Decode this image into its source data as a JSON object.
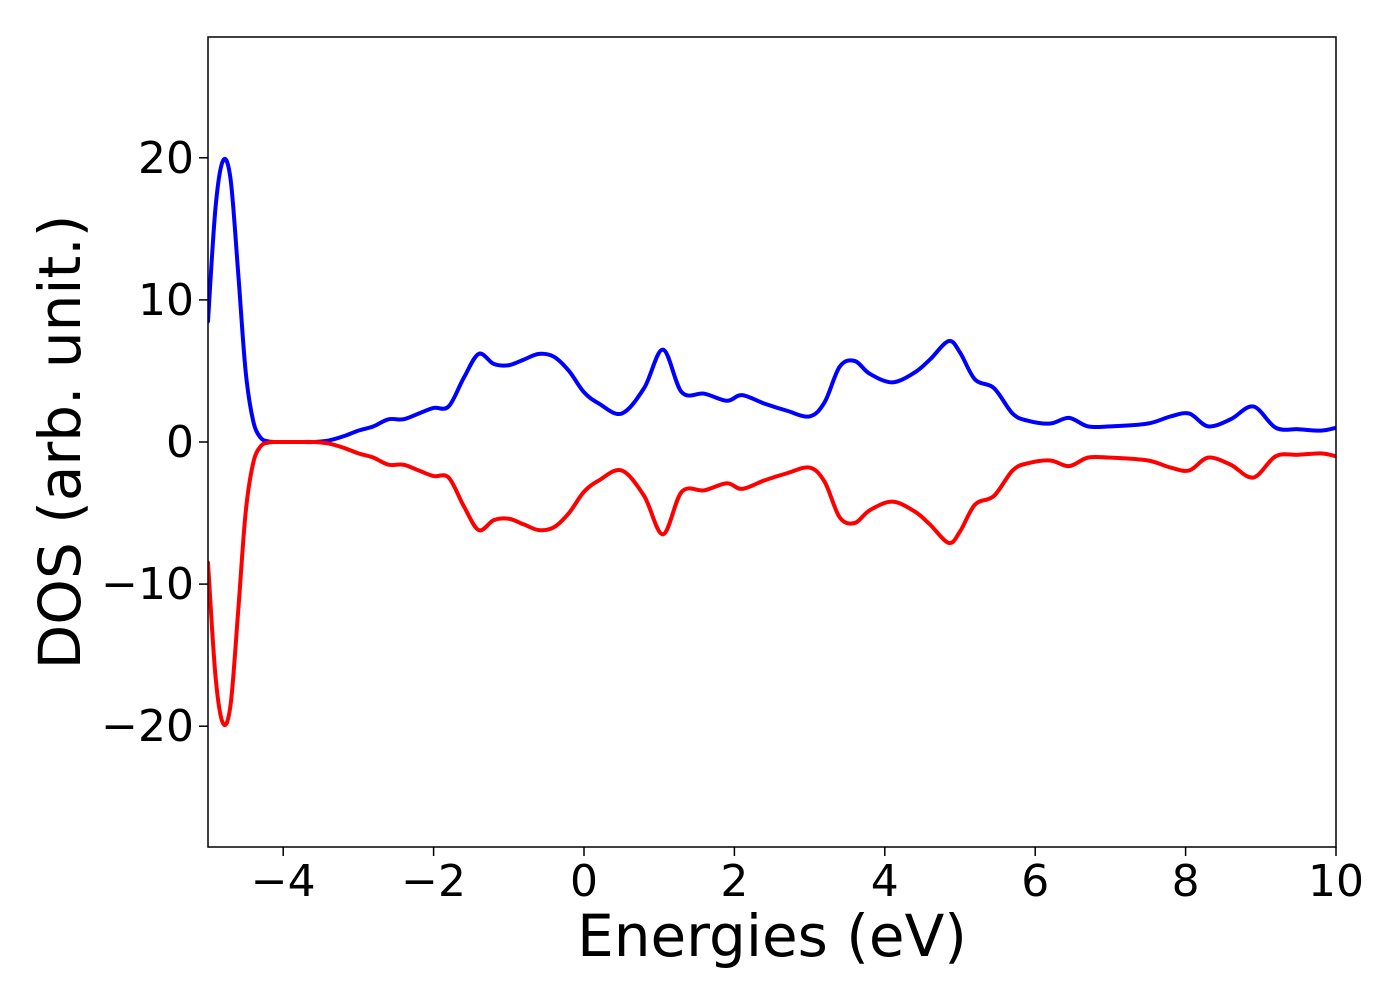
{
  "chart_data": {
    "type": "line",
    "title": "",
    "xlabel": "Energies (eV)",
    "ylabel": "DOS (arb. unit.)",
    "xlim": [
      -5,
      10
    ],
    "ylim": [
      -28.5,
      28.5
    ],
    "x_ticks": [
      {
        "value": -4,
        "label": "−4"
      },
      {
        "value": -2,
        "label": "−2"
      },
      {
        "value": 0,
        "label": "0"
      },
      {
        "value": 2,
        "label": "2"
      },
      {
        "value": 4,
        "label": "4"
      },
      {
        "value": 6,
        "label": "6"
      },
      {
        "value": 8,
        "label": "8"
      },
      {
        "value": 10,
        "label": "10"
      }
    ],
    "y_ticks": [
      {
        "value": 20,
        "label": "20"
      },
      {
        "value": 10,
        "label": "10"
      },
      {
        "value": 0,
        "label": "0"
      },
      {
        "value": -10,
        "label": "−10"
      },
      {
        "value": -20,
        "label": "−20"
      }
    ],
    "grid": false,
    "legend": "none",
    "series": [
      {
        "color": "#0000ff",
        "x": [
          -5.0,
          -4.9,
          -4.8,
          -4.7,
          -4.6,
          -4.5,
          -4.4,
          -4.3,
          -4.2,
          -4.1,
          -4.0,
          -3.8,
          -3.6,
          -3.4,
          -3.2,
          -3.0,
          -2.8,
          -2.6,
          -2.4,
          -2.2,
          -2.0,
          -1.8,
          -1.6,
          -1.4,
          -1.2,
          -1.0,
          -0.8,
          -0.6,
          -0.4,
          -0.2,
          0.0,
          0.2,
          0.5,
          0.8,
          1.05,
          1.3,
          1.6,
          1.9,
          2.1,
          2.4,
          2.7,
          3.0,
          3.2,
          3.4,
          3.6,
          3.8,
          4.1,
          4.4,
          4.6,
          4.85,
          5.0,
          5.2,
          5.45,
          5.7,
          5.9,
          6.2,
          6.45,
          6.7,
          7.0,
          7.5,
          7.8,
          8.05,
          8.3,
          8.6,
          8.9,
          9.2,
          9.5,
          9.8,
          10.0
        ],
        "y": [
          8.5,
          16.5,
          19.8,
          18.5,
          12.0,
          5.0,
          1.5,
          0.3,
          0.05,
          0.0,
          0.0,
          0.0,
          0.0,
          0.1,
          0.4,
          0.8,
          1.1,
          1.6,
          1.6,
          2.0,
          2.4,
          2.5,
          4.5,
          6.2,
          5.5,
          5.4,
          5.8,
          6.2,
          6.0,
          5.0,
          3.5,
          2.7,
          2.0,
          3.8,
          6.5,
          3.5,
          3.4,
          2.9,
          3.3,
          2.7,
          2.2,
          1.8,
          2.8,
          5.3,
          5.7,
          4.8,
          4.2,
          4.9,
          5.8,
          7.1,
          6.3,
          4.4,
          3.8,
          2.0,
          1.5,
          1.3,
          1.7,
          1.1,
          1.1,
          1.3,
          1.8,
          2.0,
          1.1,
          1.6,
          2.5,
          1.0,
          0.9,
          0.8,
          1.0
        ]
      },
      {
        "color": "#ff0000",
        "x": [
          -5.0,
          -4.9,
          -4.8,
          -4.7,
          -4.6,
          -4.5,
          -4.4,
          -4.3,
          -4.2,
          -4.1,
          -4.0,
          -3.8,
          -3.6,
          -3.4,
          -3.2,
          -3.0,
          -2.8,
          -2.6,
          -2.4,
          -2.2,
          -2.0,
          -1.8,
          -1.6,
          -1.4,
          -1.2,
          -1.0,
          -0.8,
          -0.6,
          -0.4,
          -0.2,
          0.0,
          0.2,
          0.5,
          0.8,
          1.05,
          1.3,
          1.6,
          1.9,
          2.1,
          2.4,
          2.7,
          3.0,
          3.2,
          3.4,
          3.6,
          3.8,
          4.1,
          4.4,
          4.6,
          4.85,
          5.0,
          5.2,
          5.45,
          5.7,
          5.9,
          6.2,
          6.45,
          6.7,
          7.0,
          7.5,
          7.8,
          8.05,
          8.3,
          8.6,
          8.9,
          9.2,
          9.5,
          9.8,
          10.0
        ],
        "y": [
          -8.5,
          -16.5,
          -19.8,
          -18.5,
          -12.0,
          -5.0,
          -1.5,
          -0.3,
          -0.05,
          0.0,
          0.0,
          0.0,
          0.0,
          -0.1,
          -0.4,
          -0.8,
          -1.1,
          -1.6,
          -1.6,
          -2.0,
          -2.4,
          -2.5,
          -4.5,
          -6.2,
          -5.5,
          -5.4,
          -5.8,
          -6.2,
          -6.0,
          -5.0,
          -3.5,
          -2.7,
          -2.0,
          -3.8,
          -6.5,
          -3.5,
          -3.4,
          -2.9,
          -3.3,
          -2.7,
          -2.2,
          -1.8,
          -2.8,
          -5.3,
          -5.7,
          -4.8,
          -4.2,
          -4.9,
          -5.8,
          -7.1,
          -6.3,
          -4.4,
          -3.8,
          -2.0,
          -1.5,
          -1.3,
          -1.7,
          -1.1,
          -1.1,
          -1.3,
          -1.8,
          -2.0,
          -1.1,
          -1.6,
          -2.5,
          -1.0,
          -0.9,
          -0.8,
          -1.0
        ]
      }
    ]
  }
}
